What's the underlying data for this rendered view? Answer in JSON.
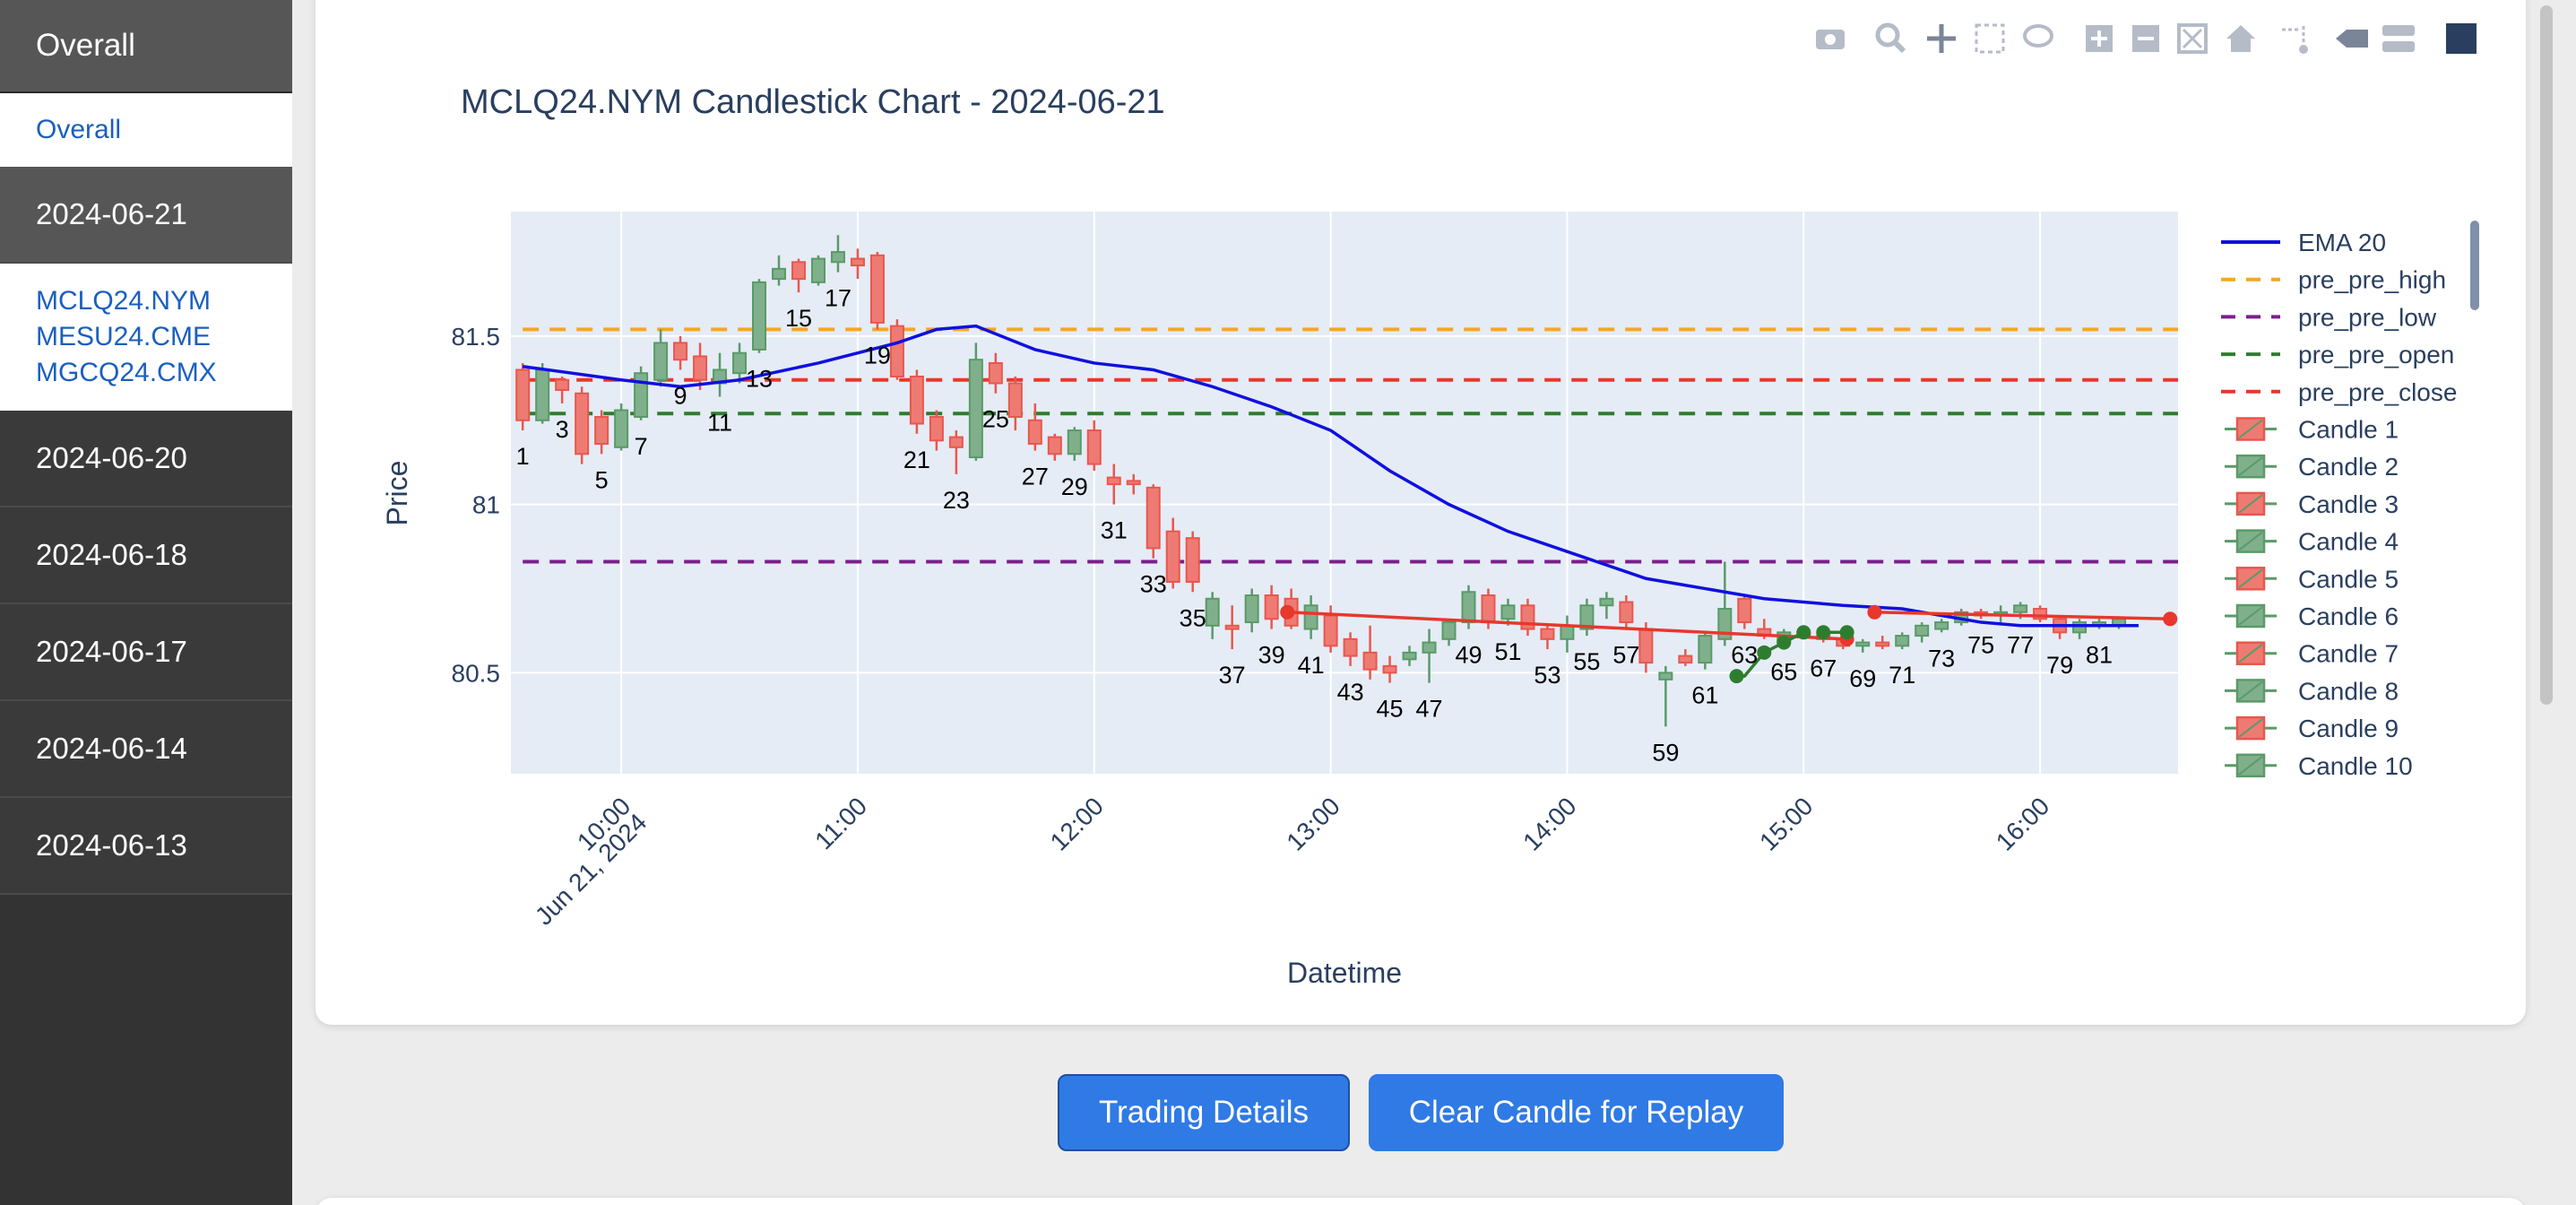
{
  "sidebar": {
    "overall_header": "Overall",
    "overall_link": "Overall",
    "dates": [
      {
        "label": "2024-06-21",
        "symbols": [
          "MCLQ24.NYM",
          "MESU24.CME",
          "MGCQ24.CMX"
        ]
      },
      {
        "label": "2024-06-20"
      },
      {
        "label": "2024-06-18"
      },
      {
        "label": "2024-06-17"
      },
      {
        "label": "2024-06-14"
      },
      {
        "label": "2024-06-13"
      }
    ]
  },
  "buttons": {
    "trading_details": "Trading Details",
    "clear_candle": "Clear Candle for Replay"
  },
  "toolbar": {
    "icons": [
      "camera-icon",
      "zoom-icon",
      "pan-icon",
      "box-select-icon",
      "lasso-select-icon",
      "zoom-in-icon",
      "zoom-out-icon",
      "autoscale-icon",
      "reset-axes-icon",
      "spike-lines-icon",
      "hover-closest-icon",
      "hover-compare-icon",
      "plotly-logo-icon"
    ]
  },
  "colors": {
    "up": "#5a9a68",
    "down": "#e8574e",
    "ema": "#1010e0",
    "pre_pre_high": "#f5a623",
    "pre_pre_low": "#7b1f8c",
    "pre_pre_open": "#2e7d2e",
    "pre_pre_close": "#e8372d",
    "plot_bg": "#e5ecf6"
  },
  "chart_data": {
    "type": "candlestick",
    "title": "MCLQ24.NYM Candlestick Chart - 2024-06-21",
    "xlabel": "Datetime",
    "ylabel": "Price",
    "x_ticks": [
      "10:00",
      "11:00",
      "12:00",
      "13:00",
      "14:00",
      "15:00",
      "16:00"
    ],
    "x_tick_sublabel": "Jun 21, 2024",
    "y_ticks": [
      80.5,
      81,
      81.5
    ],
    "ylim": [
      80.2,
      81.87
    ],
    "xlim_minutes": [
      572,
      995
    ],
    "start_minute": 575,
    "interval_minutes": 5,
    "reference_lines": [
      {
        "name": "pre_pre_high",
        "value": 81.52
      },
      {
        "name": "pre_pre_low",
        "value": 80.83
      },
      {
        "name": "pre_pre_open",
        "value": 81.27
      },
      {
        "name": "pre_pre_close",
        "value": 81.37
      }
    ],
    "candles": [
      [
        81.4,
        81.42,
        81.22,
        81.25
      ],
      [
        81.25,
        81.42,
        81.24,
        81.4
      ],
      [
        81.37,
        81.38,
        81.3,
        81.34
      ],
      [
        81.33,
        81.35,
        81.12,
        81.15
      ],
      [
        81.26,
        81.28,
        81.15,
        81.18
      ],
      [
        81.17,
        81.3,
        81.16,
        81.28
      ],
      [
        81.26,
        81.41,
        81.25,
        81.39
      ],
      [
        81.37,
        81.52,
        81.35,
        81.48
      ],
      [
        81.48,
        81.5,
        81.4,
        81.43
      ],
      [
        81.44,
        81.48,
        81.34,
        81.37
      ],
      [
        81.36,
        81.45,
        81.32,
        81.4
      ],
      [
        81.39,
        81.48,
        81.36,
        81.45
      ],
      [
        81.46,
        81.67,
        81.45,
        81.66
      ],
      [
        81.67,
        81.74,
        81.65,
        81.7
      ],
      [
        81.72,
        81.73,
        81.63,
        81.67
      ],
      [
        81.66,
        81.74,
        81.65,
        81.73
      ],
      [
        81.72,
        81.8,
        81.69,
        81.75
      ],
      [
        81.73,
        81.76,
        81.67,
        81.71
      ],
      [
        81.74,
        81.75,
        81.52,
        81.54
      ],
      [
        81.53,
        81.55,
        81.37,
        81.38
      ],
      [
        81.38,
        81.4,
        81.21,
        81.24
      ],
      [
        81.26,
        81.28,
        81.16,
        81.19
      ],
      [
        81.2,
        81.22,
        81.09,
        81.17
      ],
      [
        81.14,
        81.48,
        81.13,
        81.43
      ],
      [
        81.42,
        81.45,
        81.33,
        81.36
      ],
      [
        81.36,
        81.38,
        81.22,
        81.26
      ],
      [
        81.25,
        81.3,
        81.16,
        81.18
      ],
      [
        81.2,
        81.21,
        81.13,
        81.15
      ],
      [
        81.15,
        81.23,
        81.13,
        81.22
      ],
      [
        81.22,
        81.25,
        81.1,
        81.12
      ],
      [
        81.08,
        81.12,
        81.0,
        81.06
      ],
      [
        81.07,
        81.09,
        81.03,
        81.06
      ],
      [
        81.05,
        81.06,
        80.84,
        80.87
      ],
      [
        80.92,
        80.96,
        80.75,
        80.77
      ],
      [
        80.9,
        80.92,
        80.74,
        80.77
      ],
      [
        80.64,
        80.74,
        80.6,
        80.72
      ],
      [
        80.64,
        80.7,
        80.57,
        80.63
      ],
      [
        80.65,
        80.75,
        80.62,
        80.73
      ],
      [
        80.73,
        80.76,
        80.63,
        80.66
      ],
      [
        80.72,
        80.75,
        80.63,
        80.64
      ],
      [
        80.63,
        80.73,
        80.6,
        80.7
      ],
      [
        80.67,
        80.7,
        80.56,
        80.58
      ],
      [
        80.6,
        80.62,
        80.52,
        80.55
      ],
      [
        80.56,
        80.64,
        80.48,
        80.51
      ],
      [
        80.52,
        80.55,
        80.47,
        80.5
      ],
      [
        80.54,
        80.58,
        80.52,
        80.56
      ],
      [
        80.56,
        80.63,
        80.47,
        80.59
      ],
      [
        80.6,
        80.66,
        80.58,
        80.65
      ],
      [
        80.65,
        80.76,
        80.63,
        80.74
      ],
      [
        80.73,
        80.75,
        80.63,
        80.65
      ],
      [
        80.66,
        80.72,
        80.64,
        80.7
      ],
      [
        80.7,
        80.72,
        80.61,
        80.63
      ],
      [
        80.63,
        80.64,
        80.57,
        80.6
      ],
      [
        80.6,
        80.67,
        80.56,
        80.64
      ],
      [
        80.63,
        80.72,
        80.61,
        80.7
      ],
      [
        80.7,
        80.74,
        80.66,
        80.72
      ],
      [
        80.71,
        80.73,
        80.63,
        80.65
      ],
      [
        80.63,
        80.65,
        80.5,
        80.53
      ],
      [
        80.48,
        80.52,
        80.34,
        80.5
      ],
      [
        80.55,
        80.57,
        80.52,
        80.53
      ],
      [
        80.53,
        80.62,
        80.51,
        80.61
      ],
      [
        80.6,
        80.83,
        80.58,
        80.69
      ],
      [
        80.72,
        80.73,
        80.63,
        80.65
      ],
      [
        80.63,
        80.66,
        80.6,
        80.61
      ],
      [
        80.59,
        80.63,
        80.58,
        80.62
      ],
      [
        80.62,
        80.63,
        80.6,
        80.61
      ],
      [
        80.61,
        80.62,
        80.59,
        80.6
      ],
      [
        80.6,
        80.61,
        80.57,
        80.58
      ],
      [
        80.58,
        80.6,
        80.56,
        80.59
      ],
      [
        80.59,
        80.61,
        80.57,
        80.58
      ],
      [
        80.58,
        80.62,
        80.57,
        80.61
      ],
      [
        80.61,
        80.65,
        80.59,
        80.64
      ],
      [
        80.63,
        80.66,
        80.62,
        80.65
      ],
      [
        80.65,
        80.69,
        80.64,
        80.68
      ],
      [
        80.68,
        80.69,
        80.66,
        80.67
      ],
      [
        80.67,
        80.7,
        80.65,
        80.68
      ],
      [
        80.68,
        80.71,
        80.66,
        80.7
      ],
      [
        80.69,
        80.7,
        80.65,
        80.66
      ],
      [
        80.66,
        80.67,
        80.6,
        80.62
      ],
      [
        80.62,
        80.66,
        80.6,
        80.65
      ],
      [
        80.64,
        80.66,
        80.63,
        80.65
      ],
      [
        80.64,
        80.66,
        80.63,
        80.66
      ]
    ],
    "ema20": [
      [
        575,
        81.41
      ],
      [
        600,
        81.37
      ],
      [
        615,
        81.35
      ],
      [
        630,
        81.37
      ],
      [
        650,
        81.42
      ],
      [
        670,
        81.48
      ],
      [
        680,
        81.52
      ],
      [
        690,
        81.53
      ],
      [
        705,
        81.46
      ],
      [
        720,
        81.42
      ],
      [
        735,
        81.4
      ],
      [
        750,
        81.35
      ],
      [
        765,
        81.29
      ],
      [
        780,
        81.22
      ],
      [
        795,
        81.1
      ],
      [
        810,
        81.0
      ],
      [
        825,
        80.92
      ],
      [
        840,
        80.86
      ],
      [
        850,
        80.82
      ],
      [
        860,
        80.78
      ],
      [
        870,
        80.76
      ],
      [
        880,
        80.74
      ],
      [
        890,
        80.72
      ],
      [
        900,
        80.71
      ],
      [
        910,
        80.7
      ],
      [
        925,
        80.69
      ],
      [
        935,
        80.67
      ],
      [
        945,
        80.65
      ],
      [
        955,
        80.64
      ],
      [
        965,
        80.64
      ],
      [
        975,
        80.64
      ],
      [
        985,
        80.64
      ]
    ],
    "trade_lines": [
      {
        "color": "#e8372d",
        "points": [
          [
            769,
            80.68
          ],
          [
            911,
            80.6
          ]
        ]
      },
      {
        "color": "#e8372d",
        "points": [
          [
            918,
            80.68
          ],
          [
            993,
            80.66
          ]
        ]
      },
      {
        "color": "#2e7d2e",
        "points": [
          [
            883,
            80.49
          ],
          [
            885,
            80.49
          ],
          [
            890,
            80.56
          ],
          [
            895,
            80.59
          ],
          [
            900,
            80.62
          ]
        ]
      },
      {
        "color": "#2e7d2e",
        "points": [
          [
            905,
            80.62
          ],
          [
            911,
            80.62
          ]
        ]
      }
    ],
    "markers": [
      {
        "minute": 769,
        "value": 80.68,
        "color": "#e8372d"
      },
      {
        "minute": 911,
        "value": 80.6,
        "color": "#e8372d"
      },
      {
        "minute": 918,
        "value": 80.68,
        "color": "#e8372d"
      },
      {
        "minute": 993,
        "value": 80.66,
        "color": "#e8372d"
      },
      {
        "minute": 883,
        "value": 80.49,
        "color": "#2e7d2e"
      },
      {
        "minute": 890,
        "value": 80.56,
        "color": "#2e7d2e"
      },
      {
        "minute": 895,
        "value": 80.59,
        "color": "#2e7d2e"
      },
      {
        "minute": 900,
        "value": 80.62,
        "color": "#2e7d2e"
      },
      {
        "minute": 905,
        "value": 80.62,
        "color": "#2e7d2e"
      },
      {
        "minute": 911,
        "value": 80.62,
        "color": "#2e7d2e"
      }
    ],
    "legend": [
      {
        "name": "EMA 20",
        "style": "solid",
        "color": "#1010e0"
      },
      {
        "name": "pre_pre_high",
        "style": "dash",
        "color": "#f5a623"
      },
      {
        "name": "pre_pre_low",
        "style": "dash",
        "color": "#7b1f8c"
      },
      {
        "name": "pre_pre_open",
        "style": "dash",
        "color": "#2e7d2e"
      },
      {
        "name": "pre_pre_close",
        "style": "dash",
        "color": "#e8372d"
      },
      {
        "name": "Candle 1",
        "style": "candle"
      },
      {
        "name": "Candle 2",
        "style": "candle"
      },
      {
        "name": "Candle 3",
        "style": "candle"
      },
      {
        "name": "Candle 4",
        "style": "candle"
      },
      {
        "name": "Candle 5",
        "style": "candle"
      },
      {
        "name": "Candle 6",
        "style": "candle"
      },
      {
        "name": "Candle 7",
        "style": "candle"
      },
      {
        "name": "Candle 8",
        "style": "candle"
      },
      {
        "name": "Candle 9",
        "style": "candle"
      },
      {
        "name": "Candle 10",
        "style": "candle"
      }
    ]
  }
}
